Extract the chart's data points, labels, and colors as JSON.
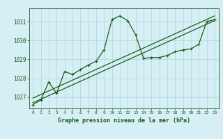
{
  "bg_color": "#d6eff5",
  "grid_color": "#aad4dc",
  "line_color": "#1a5c1a",
  "text_color": "#1a5c1a",
  "title": "Graphe pression niveau de la mer (hPa)",
  "xlim": [
    -0.5,
    23.5
  ],
  "ylim": [
    1026.4,
    1031.7
  ],
  "yticks": [
    1027,
    1028,
    1029,
    1030,
    1031
  ],
  "xticks": [
    0,
    1,
    2,
    3,
    4,
    5,
    6,
    7,
    8,
    9,
    10,
    11,
    12,
    13,
    14,
    15,
    16,
    17,
    18,
    19,
    20,
    21,
    22,
    23
  ],
  "series1_x": [
    0,
    1,
    2,
    3,
    4,
    5,
    6,
    7,
    8,
    9,
    10,
    11,
    12,
    13,
    14,
    15,
    16,
    17,
    18,
    19,
    20,
    21,
    22,
    23
  ],
  "series1_y": [
    1026.6,
    1026.85,
    1027.8,
    1027.2,
    1028.35,
    1028.2,
    1028.45,
    1028.7,
    1028.9,
    1029.5,
    1031.1,
    1031.3,
    1031.05,
    1030.3,
    1029.05,
    1029.1,
    1029.1,
    1029.2,
    1029.4,
    1029.5,
    1029.55,
    1029.8,
    1031.0,
    1031.1
  ],
  "series2_x": [
    0,
    23
  ],
  "series2_y": [
    1026.7,
    1031.05
  ],
  "series3_x": [
    0,
    23
  ],
  "series3_y": [
    1026.95,
    1031.3
  ]
}
